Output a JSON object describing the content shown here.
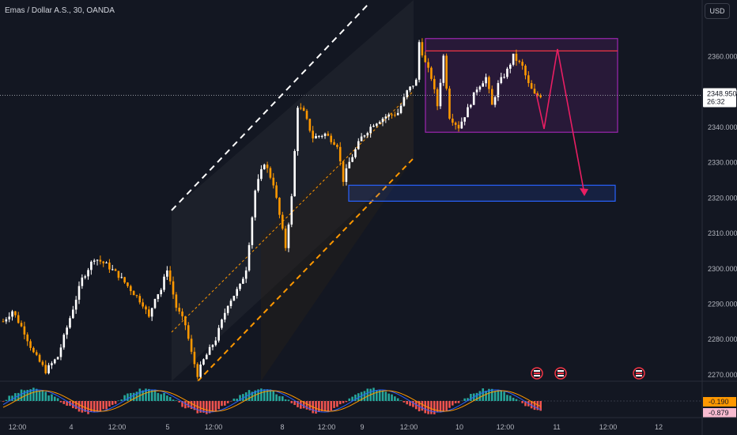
{
  "header": {
    "symbol_title": "Emas / Dollar A.S., 30, OANDA",
    "currency_button": "USD"
  },
  "chart_data": [
    {
      "type": "candlestick",
      "title": "Emas / Dollar A.S., 30, OANDA",
      "timeframe": "30",
      "currency": "USD",
      "ylim": [
        2266,
        2378
      ],
      "y_ticks": [
        2270,
        2280,
        2290,
        2300,
        2310,
        2320,
        2330,
        2340,
        2350,
        2360
      ],
      "y_tick_labels": [
        "2270.000",
        "2280.000",
        "2290.000",
        "2300.000",
        "2310.000",
        "2320.000",
        "2330.000",
        "2340.000",
        "2350.000",
        "2360.000"
      ],
      "x_tick_labels": [
        "12:00",
        "4",
        "12:00",
        "5",
        "12:00",
        "8",
        "12:00",
        "9",
        "12:00",
        "10",
        "12:00",
        "11",
        "12:00",
        "12"
      ],
      "last_price": {
        "value": 2348.95,
        "label": "2348.950",
        "countdown": "26:32"
      },
      "series": [
        {
          "name": "price",
          "anchors": [
            [
              0,
              2285
            ],
            [
              3,
              2288
            ],
            [
              7,
              2282
            ],
            [
              10,
              2276
            ],
            [
              14,
              2271
            ],
            [
              18,
              2275
            ],
            [
              22,
              2286
            ],
            [
              26,
              2297
            ],
            [
              30,
              2303
            ],
            [
              34,
              2301
            ],
            [
              38,
              2298
            ],
            [
              42,
              2294
            ],
            [
              46,
              2290
            ],
            [
              48,
              2286
            ],
            [
              50,
              2292
            ],
            [
              52,
              2294
            ],
            [
              54,
              2300
            ],
            [
              57,
              2289
            ],
            [
              60,
              2284
            ],
            [
              62,
              2276
            ],
            [
              64,
              2270
            ],
            [
              66,
              2274
            ],
            [
              70,
              2280
            ],
            [
              74,
              2290
            ],
            [
              78,
              2295
            ],
            [
              80,
              2300
            ],
            [
              83,
              2322
            ],
            [
              86,
              2330
            ],
            [
              89,
              2324
            ],
            [
              91,
              2315
            ],
            [
              93,
              2306
            ],
            [
              95,
              2320
            ],
            [
              97,
              2346
            ],
            [
              99,
              2344
            ],
            [
              102,
              2337
            ],
            [
              106,
              2338
            ],
            [
              110,
              2335
            ],
            [
              112,
              2325
            ],
            [
              114,
              2330
            ],
            [
              118,
              2337
            ],
            [
              122,
              2341
            ],
            [
              126,
              2343
            ],
            [
              130,
              2344
            ],
            [
              133,
              2350
            ],
            [
              136,
              2353
            ],
            [
              137,
              2364
            ],
            [
              139,
              2358
            ],
            [
              141,
              2354
            ],
            [
              143,
              2346
            ],
            [
              145,
              2360
            ],
            [
              147,
              2343
            ],
            [
              150,
              2340
            ],
            [
              153,
              2345
            ],
            [
              156,
              2351
            ],
            [
              159,
              2354
            ],
            [
              161,
              2346
            ],
            [
              163,
              2352
            ],
            [
              166,
              2356
            ],
            [
              168,
              2360
            ],
            [
              171,
              2357
            ],
            [
              173,
              2352
            ],
            [
              175,
              2349
            ],
            [
              177,
              2349
            ]
          ]
        }
      ],
      "channel": {
        "name": "ascending channel",
        "upper": [
          [
            2267,
            2317
          ],
          [
            2289,
            2378
          ]
        ],
        "lower": [
          [
            2264,
            2315
          ],
          [
            2330,
            2362
          ]
        ],
        "middle": [
          [
            2283,
            2341
          ],
          [
            2345,
            2362
          ]
        ]
      },
      "zones": [
        {
          "name": "resistance range",
          "top": 2365,
          "bottom": 2338.5,
          "mid_line": 2361.5,
          "color": "#9c27b0"
        },
        {
          "name": "target support",
          "top": 2323.5,
          "bottom": 2319,
          "color": "#2962ff"
        }
      ],
      "projection": {
        "color": "#e91e63",
        "path": [
          [
            2349,
            null
          ],
          [
            2339,
            null
          ],
          [
            2362,
            null
          ],
          [
            2320,
            null
          ]
        ]
      },
      "event_markers": [
        {
          "icon": "us-flag-icon",
          "index": 1
        },
        {
          "icon": "us-flag-icon",
          "index": 2
        },
        {
          "icon": "us-flag-icon",
          "index": 3
        }
      ]
    },
    {
      "type": "histogram",
      "name": "oscillator",
      "values_shown": [
        "-0.190",
        "-0.879"
      ],
      "colors": {
        "positive": "#26a69a",
        "negative": "#ef5350",
        "fast": "#2962ff",
        "slow": "#ff9800"
      }
    }
  ],
  "colors": {
    "background": "#131722",
    "axis_text": "#b2b5be",
    "candle_up": "#ffffff",
    "candle_down": "#ff9800",
    "last_price_tag": "#ffffff",
    "indicator_tag_orange": "#ff9800"
  }
}
